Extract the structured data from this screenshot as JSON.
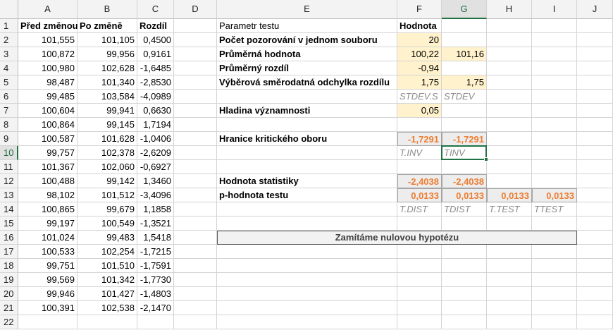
{
  "columns": [
    "A",
    "B",
    "C",
    "D",
    "E",
    "F",
    "G",
    "H",
    "I",
    "J"
  ],
  "rows": [
    "1",
    "2",
    "3",
    "4",
    "5",
    "6",
    "7",
    "8",
    "9",
    "10",
    "11",
    "12",
    "13",
    "14",
    "15",
    "16",
    "17",
    "18",
    "19",
    "20",
    "21",
    "22"
  ],
  "selected_cell": {
    "col": "G",
    "row": "10"
  },
  "headers": {
    "a": "Před změnou",
    "b": "Po změně",
    "c": "Rozdíl"
  },
  "data_rows": [
    {
      "a": "101,555",
      "b": "101,105",
      "c": "0,4500"
    },
    {
      "a": "100,872",
      "b": "99,956",
      "c": "0,9161"
    },
    {
      "a": "100,980",
      "b": "102,628",
      "c": "-1,6485"
    },
    {
      "a": "98,487",
      "b": "101,340",
      "c": "-2,8530"
    },
    {
      "a": "99,485",
      "b": "103,584",
      "c": "-4,0989"
    },
    {
      "a": "100,604",
      "b": "99,941",
      "c": "0,6630"
    },
    {
      "a": "100,864",
      "b": "99,145",
      "c": "1,7194"
    },
    {
      "a": "100,587",
      "b": "101,628",
      "c": "-1,0406"
    },
    {
      "a": "99,757",
      "b": "102,378",
      "c": "-2,6209"
    },
    {
      "a": "101,367",
      "b": "102,060",
      "c": "-0,6927"
    },
    {
      "a": "100,488",
      "b": "99,142",
      "c": "1,3460"
    },
    {
      "a": "98,102",
      "b": "101,512",
      "c": "-3,4096"
    },
    {
      "a": "100,865",
      "b": "99,679",
      "c": "1,1858"
    },
    {
      "a": "99,197",
      "b": "100,549",
      "c": "-1,3521"
    },
    {
      "a": "101,024",
      "b": "99,483",
      "c": "1,5418"
    },
    {
      "a": "100,533",
      "b": "102,254",
      "c": "-1,7215"
    },
    {
      "a": "99,751",
      "b": "101,510",
      "c": "-1,7591"
    },
    {
      "a": "99,569",
      "b": "101,342",
      "c": "-1,7730"
    },
    {
      "a": "99,946",
      "b": "101,427",
      "c": "-1,4803"
    },
    {
      "a": "100,391",
      "b": "102,538",
      "c": "-2,1470"
    }
  ],
  "params": {
    "header_param": "Parametr testu",
    "header_value": "Hodnota",
    "count_label": "Počet pozorování v jednom souboru",
    "count_f": "20",
    "mean_label": "Průměrná hodnota",
    "mean_f": "100,22",
    "mean_g": "101,16",
    "meandiff_label": "Průměrný rozdíl",
    "meandiff_f": "-0,94",
    "sd_label": "Výběrová směrodatná odchylka rozdílu",
    "sd_f": "1,75",
    "sd_g": "1,75",
    "fn_stdevs": "STDEV.S",
    "fn_stdev": "STDEV",
    "alpha_label": "Hladina významnosti",
    "alpha_f": "0,05",
    "crit_label": "Hranice kritického oboru",
    "crit_f": "-1,7291",
    "crit_g": "-1,7291",
    "fn_tinv_dot": "T.INV",
    "fn_tinv": "TINV",
    "stat_label": "Hodnota statistiky",
    "stat_f": "-2,4038",
    "stat_g": "-2,4038",
    "p_label": "p-hodnota testu",
    "p_f": "0,0133",
    "p_g": "0,0133",
    "p_h": "0,0133",
    "p_i": "0,0133",
    "fn_tdist_dot": "T.DIST",
    "fn_tdist": "TDIST",
    "fn_ttest_dot": "T.TEST",
    "fn_ttest": "TTEST",
    "conclusion": "Zamítáme nulovou hypotézu"
  },
  "colors": {
    "input_fill": "#fff2cc",
    "output_fill": "#ededed",
    "output_text": "#ed7d31",
    "selection": "#217346"
  }
}
